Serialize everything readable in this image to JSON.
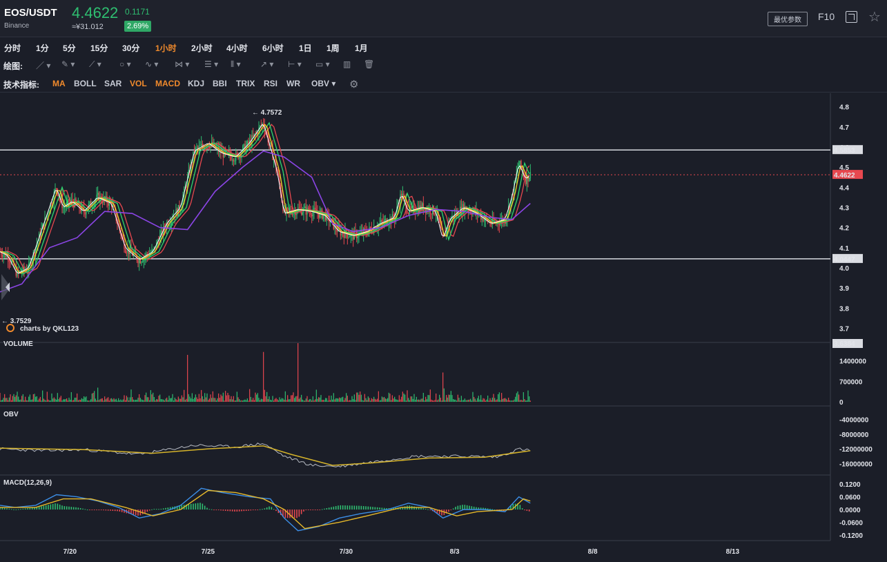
{
  "header": {
    "pair": "EOS/USDT",
    "exchange": "Binance",
    "price": "4.4622",
    "cny": "≈¥31.012",
    "change": "0.1171",
    "change_pct": "2.69%",
    "params_button": "最优参数",
    "f10": "F10",
    "icons": [
      "fullscreen-icon",
      "star-icon"
    ]
  },
  "timeframes": {
    "items": [
      "分时",
      "1分",
      "5分",
      "15分",
      "30分",
      "1小时",
      "2小时",
      "4小时",
      "6小时",
      "1日",
      "1周",
      "1月"
    ],
    "active": "1小时"
  },
  "drawing": {
    "label": "绘图:",
    "tools": [
      "line-tool-icon",
      "pen-tool-icon",
      "polyline-tool-icon",
      "circle-tool-icon",
      "wave-tool-icon",
      "pattern-tool-icon",
      "fib-tool-icon",
      "channel-tool-icon",
      "arrow-tool-icon",
      "range-tool-icon",
      "text-tool-icon",
      "bar-stats-icon",
      "trash-icon"
    ]
  },
  "indicators": {
    "label": "技术指标:",
    "items": [
      "MA",
      "BOLL",
      "SAR",
      "VOL",
      "MACD",
      "KDJ",
      "BBI",
      "TRIX",
      "RSI",
      "WR",
      "OBV ▾"
    ],
    "active": [
      "MA",
      "VOL",
      "MACD"
    ]
  },
  "colors": {
    "up": "#2fbf71",
    "down": "#e8484f",
    "ma_white": "#ffffff",
    "ma_yellow": "#f2d22a",
    "ma_green": "#2bd86f",
    "ma_red": "#e8484f",
    "ma_purple": "#8b45e6",
    "macd_dif": "#3c8ee6",
    "macd_dea": "#e6b82a",
    "obv_line": "#b8bcc4",
    "obv_ma": "#d6b42a",
    "current_price_tag": "#e8484f"
  },
  "chart_data": [
    {
      "type": "candlestick",
      "title": "",
      "y_ticks": [
        "4.8",
        "4.7",
        "4.6",
        "4.5",
        "4.4",
        "4.3",
        "4.2",
        "4.1",
        "4.0",
        "3.9",
        "3.8",
        "3.7"
      ],
      "ylim": [
        3.65,
        4.85
      ],
      "x_ticks": [
        "7/20",
        "7/25",
        "7/30",
        "8/3",
        "8/8",
        "8/13"
      ],
      "high_marker": "← 4.7572",
      "low_marker": "← 3.7529",
      "horizontal_lines": [
        {
          "value": 4.5853,
          "label": "4.5853"
        },
        {
          "value": 4.0447,
          "label": "4.0447"
        }
      ],
      "current_price": {
        "value": 4.4622,
        "label": "4.4622"
      },
      "watermark": "charts by QKL123",
      "close_path": [
        [
          "7/17 23:00",
          4.08
        ],
        [
          "7/18 06:00",
          4.06
        ],
        [
          "7/18 14:00",
          3.97
        ],
        [
          "7/19 00:00",
          4.0
        ],
        [
          "7/19 12:00",
          4.2
        ],
        [
          "7/20 00:00",
          4.4
        ],
        [
          "7/20 06:00",
          4.3
        ],
        [
          "7/20 14:00",
          4.33
        ],
        [
          "7/21 00:00",
          4.28
        ],
        [
          "7/21 12:00",
          4.35
        ],
        [
          "7/22 00:00",
          4.32
        ],
        [
          "7/22 12:00",
          4.1
        ],
        [
          "7/23 00:00",
          4.04
        ],
        [
          "7/23 12:00",
          4.08
        ],
        [
          "7/24 00:00",
          4.22
        ],
        [
          "7/24 12:00",
          4.3
        ],
        [
          "7/25 00:00",
          4.58
        ],
        [
          "7/25 12:00",
          4.62
        ],
        [
          "7/26 00:00",
          4.57
        ],
        [
          "7/26 12:00",
          4.55
        ],
        [
          "7/27 00:00",
          4.62
        ],
        [
          "7/27 12:00",
          4.72
        ],
        [
          "7/28 00:00",
          4.48
        ],
        [
          "7/28 06:00",
          4.27
        ],
        [
          "7/28 18:00",
          4.29
        ],
        [
          "7/29 06:00",
          4.28
        ],
        [
          "7/29 18:00",
          4.26
        ],
        [
          "7/30 06:00",
          4.18
        ],
        [
          "7/30 18:00",
          4.16
        ],
        [
          "7/31 06:00",
          4.18
        ],
        [
          "7/31 18:00",
          4.22
        ],
        [
          "8/1 06:00",
          4.25
        ],
        [
          "8/1 12:00",
          4.37
        ],
        [
          "8/1 18:00",
          4.28
        ],
        [
          "8/2 06:00",
          4.3
        ],
        [
          "8/2 18:00",
          4.28
        ],
        [
          "8/3 00:00",
          4.14
        ],
        [
          "8/3 06:00",
          4.24
        ],
        [
          "8/3 18:00",
          4.3
        ],
        [
          "8/4 06:00",
          4.27
        ],
        [
          "8/4 18:00",
          4.22
        ],
        [
          "8/5 06:00",
          4.24
        ],
        [
          "8/5 12:00",
          4.35
        ],
        [
          "8/5 18:00",
          4.52
        ],
        [
          "8/6 00:00",
          4.44
        ],
        [
          "8/6 04:00",
          4.4622
        ]
      ],
      "ma_purple_path": [
        [
          "7/17 23:00",
          3.88
        ],
        [
          "7/18 18:00",
          3.92
        ],
        [
          "7/19 18:00",
          4.1
        ],
        [
          "7/20 18:00",
          4.15
        ],
        [
          "7/21 18:00",
          4.28
        ],
        [
          "7/22 18:00",
          4.27
        ],
        [
          "7/23 18:00",
          4.2
        ],
        [
          "7/24 18:00",
          4.19
        ],
        [
          "7/25 18:00",
          4.38
        ],
        [
          "7/26 18:00",
          4.5
        ],
        [
          "7/27 12:00",
          4.58
        ],
        [
          "7/28 06:00",
          4.55
        ],
        [
          "7/29 06:00",
          4.45
        ],
        [
          "7/30 00:00",
          4.22
        ],
        [
          "7/30 18:00",
          4.18
        ],
        [
          "7/31 18:00",
          4.2
        ],
        [
          "8/1 18:00",
          4.26
        ],
        [
          "8/2 18:00",
          4.29
        ],
        [
          "8/3 18:00",
          4.28
        ],
        [
          "8/4 18:00",
          4.25
        ],
        [
          "8/5 12:00",
          4.24
        ],
        [
          "8/6 04:00",
          4.32
        ]
      ]
    },
    {
      "type": "bar",
      "title": "VOLUME",
      "y_ticks": [
        "1400000",
        "700000",
        "0"
      ],
      "ylim": [
        0,
        2000000
      ],
      "top_label": "3.6384",
      "spikes": [
        [
          "7/24 18:00",
          1600000
        ],
        [
          "7/27 12:00",
          1700000
        ],
        [
          "7/28 18:00",
          2000000
        ],
        [
          "8/3 00:00",
          1000000
        ]
      ]
    },
    {
      "type": "line",
      "title": "OBV",
      "y_ticks": [
        "-4000000",
        "-8000000",
        "-12000000",
        "-16000000"
      ],
      "ylim": [
        -18000000,
        -2000000
      ],
      "obv_path": [
        [
          "7/17 23:00",
          -12000000
        ],
        [
          "7/19 12:00",
          -12500000
        ],
        [
          "7/21 00:00",
          -12200000
        ],
        [
          "7/23 00:00",
          -13500000
        ],
        [
          "7/25 00:00",
          -11000000
        ],
        [
          "7/26 12:00",
          -11500000
        ],
        [
          "7/27 12:00",
          -10500000
        ],
        [
          "7/28 06:00",
          -14000000
        ],
        [
          "7/29 06:00",
          -16500000
        ],
        [
          "7/30 06:00",
          -16800000
        ],
        [
          "7/31 12:00",
          -15500000
        ],
        [
          "8/2 00:00",
          -14000000
        ],
        [
          "8/3 12:00",
          -14000000
        ],
        [
          "8/5 00:00",
          -14200000
        ],
        [
          "8/5 18:00",
          -12000000
        ],
        [
          "8/6 04:00",
          -12500000
        ]
      ],
      "obv_ma_path": [
        [
          "7/17 23:00",
          -11800000
        ],
        [
          "7/21 00:00",
          -12200000
        ],
        [
          "7/23 12:00",
          -13200000
        ],
        [
          "7/25 12:00",
          -12000000
        ],
        [
          "7/27 12:00",
          -11200000
        ],
        [
          "7/28 12:00",
          -13500000
        ],
        [
          "7/30 00:00",
          -16500000
        ],
        [
          "7/31 12:00",
          -15800000
        ],
        [
          "8/2 12:00",
          -14500000
        ],
        [
          "8/4 12:00",
          -14300000
        ],
        [
          "8/6 04:00",
          -12500000
        ]
      ]
    },
    {
      "type": "line",
      "title": "MACD(12,26,9)",
      "y_ticks": [
        "0.1200",
        "0.0600",
        "0.0000",
        "-0.0600",
        "-0.1200"
      ],
      "ylim": [
        -0.14,
        0.14
      ],
      "dif_path": [
        [
          "7/17 23:00",
          0.02
        ],
        [
          "7/18 12:00",
          0.01
        ],
        [
          "7/19 06:00",
          0.02
        ],
        [
          "7/20 00:00",
          0.07
        ],
        [
          "7/20 18:00",
          0.06
        ],
        [
          "7/21 12:00",
          0.04
        ],
        [
          "7/22 06:00",
          0.01
        ],
        [
          "7/23 00:00",
          -0.04
        ],
        [
          "7/23 18:00",
          -0.02
        ],
        [
          "7/24 12:00",
          0.02
        ],
        [
          "7/25 06:00",
          0.1
        ],
        [
          "7/26 00:00",
          0.08
        ],
        [
          "7/27 00:00",
          0.06
        ],
        [
          "7/27 18:00",
          0.05
        ],
        [
          "7/28 06:00",
          -0.04
        ],
        [
          "7/28 18:00",
          -0.1
        ],
        [
          "7/29 12:00",
          -0.08
        ],
        [
          "7/30 06:00",
          -0.04
        ],
        [
          "7/31 00:00",
          -0.02
        ],
        [
          "8/1 00:00",
          0.0
        ],
        [
          "8/1 18:00",
          0.03
        ],
        [
          "8/2 12:00",
          0.01
        ],
        [
          "8/3 00:00",
          -0.04
        ],
        [
          "8/3 18:00",
          0.0
        ],
        [
          "8/4 12:00",
          0.0
        ],
        [
          "8/5 06:00",
          -0.01
        ],
        [
          "8/5 18:00",
          0.06
        ],
        [
          "8/6 04:00",
          0.03
        ]
      ],
      "dea_path": [
        [
          "7/17 23:00",
          0.01
        ],
        [
          "7/19 06:00",
          0.01
        ],
        [
          "7/20 06:00",
          0.05
        ],
        [
          "7/21 06:00",
          0.05
        ],
        [
          "7/22 12:00",
          0.01
        ],
        [
          "7/23 12:00",
          -0.03
        ],
        [
          "7/24 12:00",
          0.0
        ],
        [
          "7/25 12:00",
          0.09
        ],
        [
          "7/26 12:00",
          0.08
        ],
        [
          "7/27 12:00",
          0.05
        ],
        [
          "7/28 06:00",
          0.0
        ],
        [
          "7/29 00:00",
          -0.09
        ],
        [
          "7/30 06:00",
          -0.06
        ],
        [
          "7/31 06:00",
          -0.03
        ],
        [
          "8/1 12:00",
          0.01
        ],
        [
          "8/2 12:00",
          0.01
        ],
        [
          "8/3 12:00",
          -0.03
        ],
        [
          "8/4 06:00",
          -0.01
        ],
        [
          "8/5 12:00",
          0.0
        ],
        [
          "8/5 22:00",
          0.05
        ],
        [
          "8/6 04:00",
          0.04
        ]
      ]
    }
  ]
}
